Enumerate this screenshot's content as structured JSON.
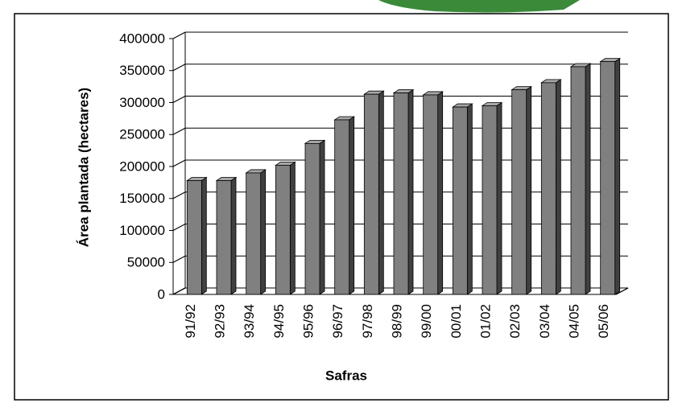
{
  "chart_data": {
    "type": "bar3d",
    "x_label": "Safras",
    "y_label": "Área plantada (hectares)",
    "categories": [
      "91/92",
      "92/93",
      "93/94",
      "94/95",
      "95/96",
      "96/97",
      "97/98",
      "98/99",
      "99/00",
      "00/01",
      "01/02",
      "02/03",
      "03/04",
      "04/05",
      "05/06"
    ],
    "values": [
      178000,
      178000,
      190000,
      202000,
      236000,
      273000,
      313000,
      315000,
      312000,
      293000,
      295000,
      320000,
      331000,
      356000,
      364000
    ],
    "color": "#808080",
    "ylim": [
      0,
      400000
    ],
    "yticks": [
      0,
      50000,
      100000,
      150000,
      200000,
      250000,
      300000,
      350000,
      400000
    ],
    "grid": true
  }
}
